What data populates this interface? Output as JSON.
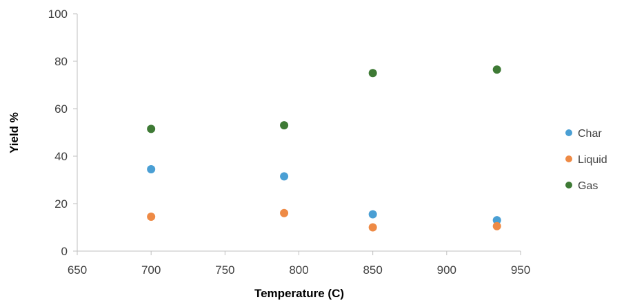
{
  "chart_data": {
    "type": "scatter",
    "xlabel": "Temperature (C)",
    "ylabel": "Yield %",
    "xlim": [
      650,
      950
    ],
    "ylim": [
      0,
      100
    ],
    "xticks": [
      650,
      700,
      750,
      800,
      850,
      900,
      950
    ],
    "yticks": [
      0,
      20,
      40,
      60,
      80,
      100
    ],
    "grid": false,
    "legend_position": "right",
    "series": [
      {
        "name": "Char",
        "color": "#4A9FD4",
        "points": [
          [
            700,
            34.5
          ],
          [
            790,
            31.5
          ],
          [
            850,
            15.5
          ],
          [
            934,
            13
          ]
        ]
      },
      {
        "name": "Liquid",
        "color": "#EE8A45",
        "points": [
          [
            700,
            14.5
          ],
          [
            790,
            16
          ],
          [
            850,
            10
          ],
          [
            934,
            10.5
          ]
        ]
      },
      {
        "name": "Gas",
        "color": "#3E7A35",
        "points": [
          [
            700,
            51.5
          ],
          [
            790,
            53
          ],
          [
            850,
            75
          ],
          [
            934,
            76.5
          ]
        ]
      }
    ]
  }
}
